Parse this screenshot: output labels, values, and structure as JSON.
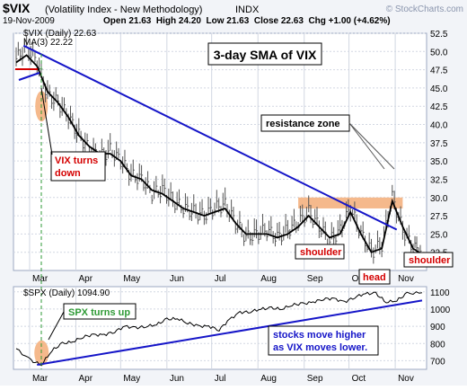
{
  "header": {
    "symbol": "$VIX",
    "name": "(Volatility Index - New Methodology)",
    "exchange": "INDX",
    "logo": "© StockCharts.com",
    "date": "19-Nov-2009",
    "ohlc": "Open 21.63  High 24.20  Low 21.63  Close 22.63  Chg +1.00 (+4.62%)"
  },
  "chart_data": [
    {
      "type": "bar",
      "title": "3-day SMA of VIX",
      "legend": [
        "$VIX (Daily) 22.63",
        "MA(3) 22.22"
      ],
      "x": [
        "2009-02-20",
        "2009-02-27",
        "2009-03-06",
        "2009-03-13",
        "2009-03-20",
        "2009-03-27",
        "2009-04-03",
        "2009-04-10",
        "2009-04-17",
        "2009-04-24",
        "2009-05-01",
        "2009-05-08",
        "2009-05-15",
        "2009-05-22",
        "2009-05-29",
        "2009-06-05",
        "2009-06-12",
        "2009-06-19",
        "2009-06-26",
        "2009-07-03",
        "2009-07-10",
        "2009-07-17",
        "2009-07-24",
        "2009-07-31",
        "2009-08-07",
        "2009-08-14",
        "2009-08-21",
        "2009-08-28",
        "2009-09-04",
        "2009-09-11",
        "2009-09-18",
        "2009-09-25",
        "2009-10-02",
        "2009-10-09",
        "2009-10-16",
        "2009-10-23",
        "2009-10-30",
        "2009-11-06",
        "2009-11-13",
        "2009-11-19"
      ],
      "close": [
        49.0,
        50.5,
        48.5,
        44.0,
        43.0,
        41.0,
        38.5,
        36.5,
        35.5,
        36.5,
        35.0,
        33.0,
        32.5,
        30.5,
        31.0,
        29.5,
        28.5,
        28.0,
        27.5,
        28.5,
        29.0,
        26.5,
        24.5,
        25.0,
        25.5,
        24.5,
        25.5,
        26.5,
        28.0,
        26.0,
        24.0,
        25.5,
        28.5,
        25.0,
        22.5,
        23.5,
        30.0,
        25.5,
        23.0,
        22.63
      ],
      "ma": [
        48.5,
        49.5,
        48.0,
        44.5,
        43.0,
        41.0,
        38.5,
        37.0,
        36.0,
        36.0,
        35.0,
        33.0,
        32.5,
        31.0,
        30.5,
        29.5,
        28.5,
        28.0,
        27.5,
        28.0,
        28.5,
        26.5,
        25.0,
        25.0,
        25.0,
        24.5,
        25.0,
        26.0,
        27.5,
        26.0,
        24.5,
        25.0,
        28.0,
        25.0,
        22.5,
        23.0,
        29.5,
        26.0,
        23.0,
        22.22
      ],
      "ylim": [
        20,
        52.5
      ],
      "yticks": [
        22.5,
        25.0,
        27.5,
        30.0,
        32.5,
        35.0,
        37.5,
        40.0,
        42.5,
        45.0,
        47.5,
        50.0,
        52.5
      ],
      "months": [
        "Mar",
        "Apr",
        "May",
        "Jun",
        "Jul",
        "Aug",
        "Sep",
        "Oct",
        "Nov"
      ],
      "annotations": [
        "VIX turns down",
        "resistance zone",
        "shoulder",
        "head",
        "shoulder"
      ],
      "resistance_zone": [
        28.5,
        30.0
      ],
      "trendline": [
        [
          "2009-02-25",
          50.8
        ],
        [
          "2009-11-02",
          25.6
        ]
      ],
      "grid": true
    },
    {
      "type": "line",
      "legend": [
        "$SPX (Daily) 1094.90"
      ],
      "x": [
        "2009-02-20",
        "2009-03-02",
        "2009-03-09",
        "2009-03-16",
        "2009-03-23",
        "2009-03-30",
        "2009-04-06",
        "2009-04-13",
        "2009-04-20",
        "2009-04-27",
        "2009-05-04",
        "2009-05-11",
        "2009-05-18",
        "2009-05-25",
        "2009-06-01",
        "2009-06-08",
        "2009-06-15",
        "2009-06-22",
        "2009-06-29",
        "2009-07-06",
        "2009-07-13",
        "2009-07-20",
        "2009-07-27",
        "2009-08-03",
        "2009-08-10",
        "2009-08-17",
        "2009-08-24",
        "2009-08-31",
        "2009-09-07",
        "2009-09-14",
        "2009-09-21",
        "2009-09-28",
        "2009-10-05",
        "2009-10-12",
        "2009-10-19",
        "2009-10-26",
        "2009-11-02",
        "2009-11-09",
        "2009-11-19"
      ],
      "y": [
        770,
        700,
        677,
        760,
        800,
        810,
        840,
        850,
        850,
        870,
        900,
        890,
        900,
        910,
        940,
        945,
        920,
        900,
        900,
        880,
        940,
        980,
        985,
        1000,
        1005,
        1000,
        1025,
        1030,
        1040,
        1060,
        1060,
        1040,
        1070,
        1090,
        1090,
        1040,
        1050,
        1090,
        1094.9
      ],
      "ylim": [
        650,
        1130
      ],
      "yticks": [
        700,
        800,
        900,
        1000,
        1100
      ],
      "months": [
        "Mar",
        "Apr",
        "May",
        "Jun",
        "Jul",
        "Aug",
        "Sep",
        "Oct",
        "Nov"
      ],
      "annotations": [
        "SPX turns up",
        "stocks move higher as VIX moves lower."
      ],
      "trendline": [
        [
          "2009-03-06",
          676
        ],
        [
          "2009-11-19",
          1050
        ]
      ],
      "grid": true
    }
  ],
  "colors": {
    "price": "#000000",
    "trend": "#1515c8",
    "highlight": "#f5b98c",
    "panel_bg": "#ffffff",
    "frame": "#9ca7c2",
    "label_red": "#d40000",
    "label_green": "#2e9a35",
    "grid": "#d2d7e2"
  },
  "labels": {
    "title": "3-day SMA of VIX",
    "vix_turns": [
      "VIX turns",
      "down"
    ],
    "resistance": "resistance zone",
    "shoulder_left": "shoulder",
    "head": "head",
    "shoulder_right": "shoulder",
    "spx_up": "SPX turns up",
    "stocks": [
      "stocks move higher",
      "as VIX moves lower."
    ]
  }
}
